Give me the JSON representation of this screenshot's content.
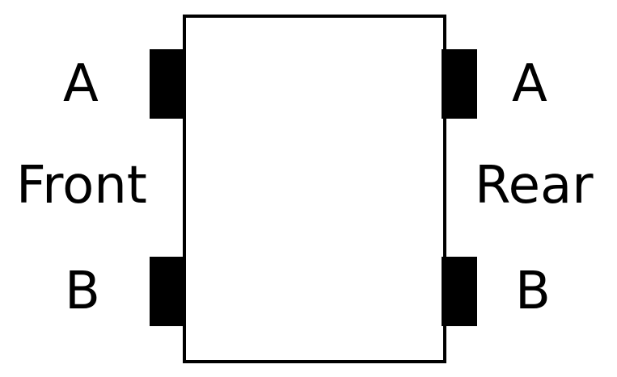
{
  "diagram": {
    "front": {
      "side_label": "Front",
      "top_port_label": "A",
      "bottom_port_label": "B"
    },
    "rear": {
      "side_label": "Rear",
      "top_port_label": "A",
      "bottom_port_label": "B"
    },
    "colors": {
      "stroke": "#000000",
      "fill": "#ffffff",
      "port_fill": "#000000"
    }
  }
}
